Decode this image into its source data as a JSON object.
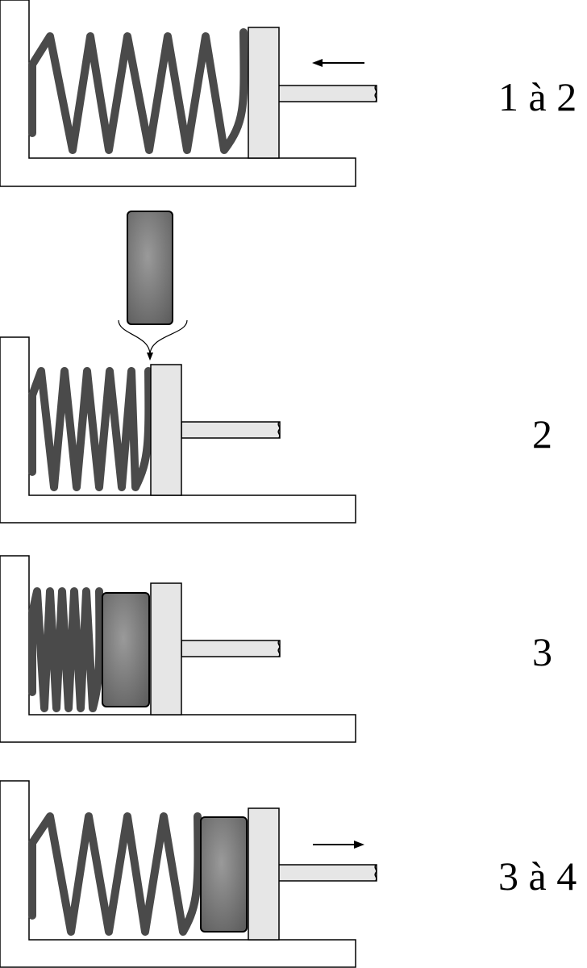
{
  "stages": [
    {
      "label": "1 à 2"
    },
    {
      "label": "2"
    },
    {
      "label": "3"
    },
    {
      "label": "3 à 4"
    }
  ],
  "colors": {
    "spring": "#4a4a4a",
    "frame_fill": "#ffffff",
    "frame_stroke": "#000000",
    "piston": "#e6e6e6",
    "mass_light": "#9a9a9a",
    "mass_dark": "#5e5e5e"
  }
}
